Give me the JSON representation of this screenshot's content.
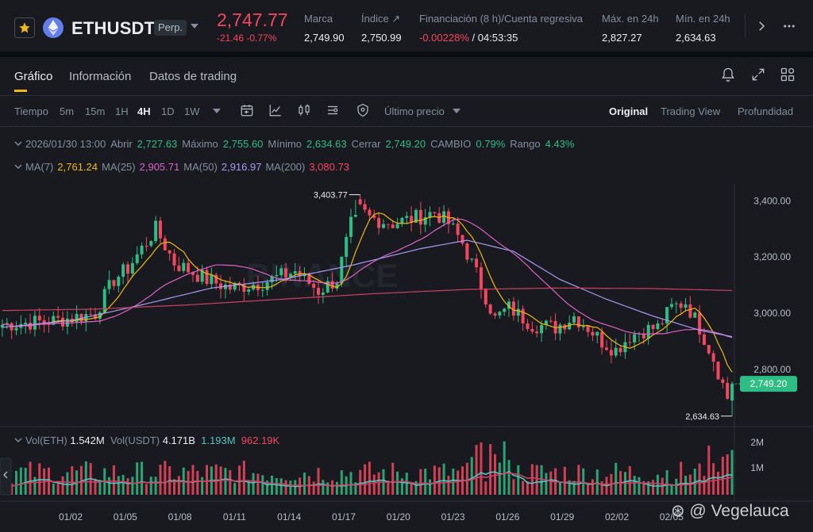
{
  "header": {
    "symbol": "ETHUSDT",
    "contract_type": "Perp.",
    "last_price": "2,747.77",
    "change": "-21.46 -0.77%",
    "stats": [
      {
        "label": "Marca",
        "value": "2,749.90"
      },
      {
        "label": "Índice ↗",
        "value": "2,750.99"
      },
      {
        "label": "Financiación (8 h)/Cuenta regresiva",
        "value_rate": "-0.00228%",
        "value_countdown": " / 04:53:35"
      },
      {
        "label": "Máx. en 24h",
        "value": "2,827.27"
      },
      {
        "label": "Mín. en 24h",
        "value": "2,634.63"
      }
    ],
    "colors": {
      "down": "#f6465d",
      "up": "#2ebd85",
      "accent": "#f0b90b"
    }
  },
  "tabs": [
    {
      "label": "Gráfico",
      "active": true
    },
    {
      "label": "Información",
      "active": false
    },
    {
      "label": "Datos de trading",
      "active": false
    }
  ],
  "toolbar": {
    "time_label": "Tiempo",
    "intervals": [
      "5m",
      "15m",
      "1H",
      "4H",
      "1D",
      "1W"
    ],
    "active_interval": "4H",
    "price_type": "Último precio",
    "views": [
      "Original",
      "Trading View",
      "Profundidad"
    ],
    "active_view": "Original"
  },
  "ohlc": {
    "date": "2026/01/30 13:00",
    "open_label": "Abrir",
    "open": "2,727.63",
    "high_label": "Máximo",
    "high": "2,755.60",
    "low_label": "Mínimo",
    "low": "2,634.63",
    "close_label": "Cerrar",
    "close": "2,749.20",
    "change_label": "CAMBIO",
    "change": "0.79%",
    "range_label": "Rango",
    "range": "4.43%"
  },
  "ma": {
    "ma7_label": "MA(7)",
    "ma7": "2,761.24",
    "ma25_label": "MA(25)",
    "ma25": "2,905.71",
    "ma50_label": "MA(50)",
    "ma50": "2,916.97",
    "ma200_label": "MA(200)",
    "ma200": "3,080.73"
  },
  "volume": {
    "eth_label": "Vol(ETH)",
    "eth": "1.542M",
    "usdt_label": "Vol(USDT)",
    "usdt": "4.171B",
    "ma1": "1.193M",
    "ma2": "962.19K",
    "axis": [
      "2M",
      "1M"
    ]
  },
  "chart_data": {
    "type": "candlestick",
    "interval": "4H",
    "price_axis": [
      "3,400.00",
      "3,200.00",
      "3,000.00",
      "2,800.00"
    ],
    "y_ticks": [
      3400,
      3200,
      3000,
      2800
    ],
    "ylim": [
      2620,
      3460
    ],
    "date_axis": [
      "01/02",
      "01/05",
      "01/08",
      "01/11",
      "01/14",
      "01/17",
      "01/20",
      "01/23",
      "01/26",
      "01/29",
      "02/02",
      "02/05"
    ],
    "high_marker": "3,403.77",
    "high_value": 3403.77,
    "low_marker": "2,634.63",
    "low_value": 2634.63,
    "last_price_tag": "2,749.20",
    "last_price_value": 2749.2,
    "watermark": "BINANCE",
    "price_path": [
      [
        0,
        2960
      ],
      [
        12,
        2975
      ],
      [
        20,
        3000
      ],
      [
        24,
        3120
      ],
      [
        27,
        3160
      ],
      [
        33,
        3300
      ],
      [
        37,
        3180
      ],
      [
        44,
        3120
      ],
      [
        49,
        3090
      ],
      [
        56,
        3110
      ],
      [
        63,
        3150
      ],
      [
        68,
        3080
      ],
      [
        72,
        3120
      ],
      [
        76,
        3380
      ],
      [
        79,
        3340
      ],
      [
        84,
        3320
      ],
      [
        89,
        3340
      ],
      [
        93,
        3360
      ],
      [
        96,
        3320
      ],
      [
        99,
        3250
      ],
      [
        102,
        3140
      ],
      [
        106,
        2980
      ],
      [
        109,
        3020
      ],
      [
        114,
        2960
      ],
      [
        119,
        2950
      ],
      [
        123,
        2990
      ],
      [
        126,
        2950
      ],
      [
        129,
        2900
      ],
      [
        132,
        2870
      ],
      [
        135,
        2920
      ],
      [
        138,
        2940
      ],
      [
        141,
        2950
      ],
      [
        144,
        3020
      ],
      [
        147,
        3040
      ],
      [
        150,
        2950
      ],
      [
        153,
        2840
      ],
      [
        156,
        2700
      ],
      [
        157,
        2749
      ]
    ],
    "ma200_path": [
      [
        0,
        3010
      ],
      [
        20,
        3015
      ],
      [
        40,
        3030
      ],
      [
        60,
        3050
      ],
      [
        80,
        3070
      ],
      [
        100,
        3085
      ],
      [
        120,
        3090
      ],
      [
        140,
        3088
      ],
      [
        157,
        3081
      ]
    ],
    "ma50_path": [
      [
        0,
        2950
      ],
      [
        15,
        2975
      ],
      [
        30,
        3030
      ],
      [
        45,
        3090
      ],
      [
        60,
        3120
      ],
      [
        75,
        3170
      ],
      [
        90,
        3230
      ],
      [
        100,
        3260
      ],
      [
        110,
        3220
      ],
      [
        120,
        3120
      ],
      [
        130,
        3050
      ],
      [
        140,
        2990
      ],
      [
        150,
        2940
      ],
      [
        157,
        2917
      ]
    ]
  }
}
